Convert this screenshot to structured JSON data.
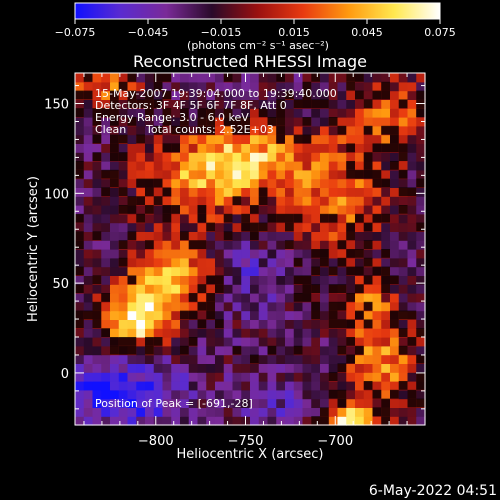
{
  "colorbar": {
    "tick_labels": [
      "−0.075",
      "−0.045",
      "−0.015",
      "0.015",
      "0.045",
      "0.075"
    ],
    "tick_values": [
      -0.075,
      -0.045,
      -0.015,
      0.015,
      0.045,
      0.075
    ],
    "range": [
      -0.075,
      0.075
    ],
    "unit_label": "(photons cm⁻² s⁻¹ asec⁻²)",
    "colors": [
      "#1010ff",
      "#5a2bd0",
      "#7a2a98",
      "#2a0a2a",
      "#9a1010",
      "#e83a10",
      "#ff9a10",
      "#ffe850",
      "#ffffff"
    ]
  },
  "chart_data": {
    "type": "heatmap",
    "title": "Reconstructed RHESSI Image",
    "xlabel": "Heliocentric X (arcsec)",
    "ylabel": "Heliocentric Y (arcsec)",
    "xlim": [
      -845,
      -650
    ],
    "ylim": [
      -29,
      167
    ],
    "x_ticks": [
      -800,
      -750,
      -700
    ],
    "x_tick_labels": [
      "−800",
      "−750",
      "−700"
    ],
    "y_ticks": [
      0,
      50,
      100,
      150
    ],
    "y_tick_labels": [
      "0",
      "50",
      "100",
      "150"
    ],
    "annotations": [
      "15-May-2007 19:39:04.000 to 19:39:40.000",
      "Detectors: 3F 4F 5F 6F 7F 8F, Att 0",
      "Energy Range: 3.0 - 6.0 keV",
      "Clean",
      "Total counts: 2.52E+03",
      "Position of Peak = [-691,-28]"
    ],
    "peak_position": [
      -691,
      -28
    ],
    "grid_size": [
      40,
      40
    ],
    "blobs": [
      {
        "x": -810,
        "y": 30,
        "sx": 14,
        "sy": 12,
        "amp": 0.09
      },
      {
        "x": -790,
        "y": 55,
        "sx": 18,
        "sy": 14,
        "amp": 0.06
      },
      {
        "x": -830,
        "y": 160,
        "sx": 14,
        "sy": 8,
        "amp": 0.05
      },
      {
        "x": -775,
        "y": 110,
        "sx": 25,
        "sy": 18,
        "amp": 0.06
      },
      {
        "x": -745,
        "y": 120,
        "sx": 18,
        "sy": 12,
        "amp": 0.05
      },
      {
        "x": -700,
        "y": 100,
        "sx": 20,
        "sy": 25,
        "amp": 0.05
      },
      {
        "x": -670,
        "y": 145,
        "sx": 15,
        "sy": 15,
        "amp": 0.045
      },
      {
        "x": -691,
        "y": -28,
        "sx": 10,
        "sy": 7,
        "amp": 0.095
      },
      {
        "x": -675,
        "y": 5,
        "sx": 14,
        "sy": 16,
        "amp": 0.06
      },
      {
        "x": -680,
        "y": 40,
        "sx": 10,
        "sy": 12,
        "amp": 0.04
      },
      {
        "x": -820,
        "y": -10,
        "sx": 25,
        "sy": 15,
        "amp": -0.05
      },
      {
        "x": -750,
        "y": 55,
        "sx": 15,
        "sy": 15,
        "amp": -0.025
      },
      {
        "x": -730,
        "y": -15,
        "sx": 18,
        "sy": 10,
        "amp": -0.02
      }
    ],
    "background": -0.022,
    "noise": 0.02
  },
  "footer": {
    "date": "6-May-2022 04:51"
  }
}
